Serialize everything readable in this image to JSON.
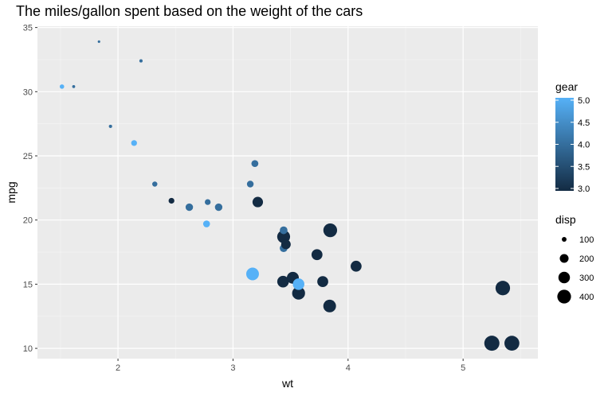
{
  "chart_data": {
    "type": "scatter",
    "title": "The miles/gallon spent based on the weight of the cars",
    "xlabel": "wt",
    "ylabel": "mpg",
    "xlim": [
      1.3,
      5.65
    ],
    "ylim": [
      9.2,
      35.1
    ],
    "xticks": [
      2,
      3,
      4,
      5
    ],
    "yticks": [
      10,
      15,
      20,
      25,
      30,
      35
    ],
    "grid": true,
    "background": "#ebebeb",
    "color_legend": {
      "title": "gear",
      "ticks": [
        3.0,
        3.5,
        4.0,
        4.5,
        5.0
      ],
      "tick_labels": [
        "3.0",
        "3.5",
        "4.0",
        "4.5",
        "5.0"
      ],
      "low_color": "#132b43",
      "high_color": "#56b1f7"
    },
    "size_legend": {
      "title": "disp",
      "values": [
        100,
        200,
        300,
        400
      ],
      "labels": [
        "100",
        "200",
        "300",
        "400"
      ]
    },
    "points": [
      {
        "wt": 1.513,
        "mpg": 30.4,
        "gear": 5,
        "disp": 95.1
      },
      {
        "wt": 1.615,
        "mpg": 30.4,
        "gear": 4,
        "disp": 75.7
      },
      {
        "wt": 1.835,
        "mpg": 33.9,
        "gear": 4,
        "disp": 71.1
      },
      {
        "wt": 1.935,
        "mpg": 27.3,
        "gear": 4,
        "disp": 79.0
      },
      {
        "wt": 2.14,
        "mpg": 26.0,
        "gear": 5,
        "disp": 120.3
      },
      {
        "wt": 2.2,
        "mpg": 32.4,
        "gear": 4,
        "disp": 78.7
      },
      {
        "wt": 2.32,
        "mpg": 22.8,
        "gear": 4,
        "disp": 108.0
      },
      {
        "wt": 2.465,
        "mpg": 21.5,
        "gear": 3,
        "disp": 120.1
      },
      {
        "wt": 2.62,
        "mpg": 21.0,
        "gear": 4,
        "disp": 160.0
      },
      {
        "wt": 2.77,
        "mpg": 19.7,
        "gear": 5,
        "disp": 145.0
      },
      {
        "wt": 2.78,
        "mpg": 21.4,
        "gear": 4,
        "disp": 121.0
      },
      {
        "wt": 2.875,
        "mpg": 21.0,
        "gear": 4,
        "disp": 160.0
      },
      {
        "wt": 3.15,
        "mpg": 22.8,
        "gear": 4,
        "disp": 140.8
      },
      {
        "wt": 3.17,
        "mpg": 15.8,
        "gear": 5,
        "disp": 351.0
      },
      {
        "wt": 3.19,
        "mpg": 24.4,
        "gear": 4,
        "disp": 146.7
      },
      {
        "wt": 3.215,
        "mpg": 21.4,
        "gear": 3,
        "disp": 258.0
      },
      {
        "wt": 3.435,
        "mpg": 15.2,
        "gear": 3,
        "disp": 304.0
      },
      {
        "wt": 3.44,
        "mpg": 18.7,
        "gear": 3,
        "disp": 360.0
      },
      {
        "wt": 3.44,
        "mpg": 19.2,
        "gear": 4,
        "disp": 167.6
      },
      {
        "wt": 3.44,
        "mpg": 17.8,
        "gear": 4,
        "disp": 167.6
      },
      {
        "wt": 3.46,
        "mpg": 18.1,
        "gear": 3,
        "disp": 225.0
      },
      {
        "wt": 3.52,
        "mpg": 15.5,
        "gear": 3,
        "disp": 318.0
      },
      {
        "wt": 3.57,
        "mpg": 14.3,
        "gear": 3,
        "disp": 360.0
      },
      {
        "wt": 3.57,
        "mpg": 15.0,
        "gear": 5,
        "disp": 301.0
      },
      {
        "wt": 3.73,
        "mpg": 17.3,
        "gear": 3,
        "disp": 275.8
      },
      {
        "wt": 3.78,
        "mpg": 15.2,
        "gear": 3,
        "disp": 275.8
      },
      {
        "wt": 3.84,
        "mpg": 13.3,
        "gear": 3,
        "disp": 350.0
      },
      {
        "wt": 3.845,
        "mpg": 19.2,
        "gear": 3,
        "disp": 400.0
      },
      {
        "wt": 4.07,
        "mpg": 16.4,
        "gear": 3,
        "disp": 275.8
      },
      {
        "wt": 5.25,
        "mpg": 10.4,
        "gear": 3,
        "disp": 472.0
      },
      {
        "wt": 5.345,
        "mpg": 14.7,
        "gear": 3,
        "disp": 440.0
      },
      {
        "wt": 5.424,
        "mpg": 10.4,
        "gear": 3,
        "disp": 460.0
      }
    ]
  }
}
